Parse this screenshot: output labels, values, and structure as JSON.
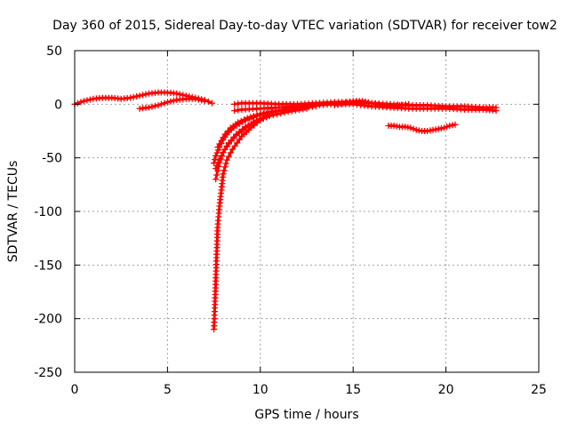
{
  "chart_data": {
    "type": "scatter",
    "title": "Day 360 of 2015, Sidereal Day-to-day VTEC variation (SDTVAR) for receiver tow2",
    "xlabel": "GPS time / hours",
    "ylabel": "SDTVAR / TECUs",
    "xlim": [
      0,
      25
    ],
    "ylim": [
      -250,
      50
    ],
    "xticks": [
      0,
      5,
      10,
      15,
      20,
      25
    ],
    "yticks": [
      50,
      0,
      -50,
      -100,
      -150,
      -200,
      -250
    ],
    "grid": true,
    "marker": "plus",
    "color": "#ff0000",
    "series": [
      {
        "name": "early-oscillation-upper",
        "x": [
          0,
          0.5,
          1,
          1.5,
          2,
          2.5,
          3,
          3.5,
          4,
          4.5,
          5,
          5.5,
          6,
          6.5,
          7,
          7.4
        ],
        "y": [
          0,
          3,
          5,
          6,
          6,
          5,
          6,
          8,
          10,
          11,
          11,
          10,
          8,
          6,
          4,
          1
        ]
      },
      {
        "name": "early-oscillation-lower",
        "x": [
          3.5,
          4,
          4.5,
          5,
          5.5,
          6,
          6.5,
          7
        ],
        "y": [
          -4,
          -3,
          -1,
          2,
          4,
          5,
          5,
          3
        ]
      },
      {
        "name": "steep-drop-main",
        "x": [
          7.5,
          7.55,
          7.6,
          7.65,
          7.7,
          7.8,
          7.9,
          8,
          8.2,
          8.5,
          9,
          9.5,
          10,
          10.5
        ],
        "y": [
          -210,
          -190,
          -165,
          -140,
          -115,
          -95,
          -80,
          -65,
          -52,
          -42,
          -30,
          -22,
          -15,
          -10
        ]
      },
      {
        "name": "recovery-branch-1",
        "x": [
          7.5,
          7.6,
          7.8,
          8,
          8.3,
          8.7,
          9.2,
          9.8,
          10.5,
          11,
          12,
          13
        ],
        "y": [
          -55,
          -48,
          -40,
          -33,
          -26,
          -20,
          -15,
          -11,
          -8,
          -6,
          -4,
          -2
        ]
      },
      {
        "name": "recovery-branch-2",
        "x": [
          7.6,
          7.8,
          8,
          8.3,
          8.7,
          9.2,
          9.8,
          10.5,
          11.5,
          12.5
        ],
        "y": [
          -60,
          -52,
          -45,
          -37,
          -29,
          -22,
          -16,
          -11,
          -7,
          -4
        ]
      },
      {
        "name": "recovery-branch-3",
        "x": [
          7.7,
          7.9,
          8.1,
          8.4,
          8.8,
          9.3,
          10,
          11,
          12
        ],
        "y": [
          -40,
          -34,
          -28,
          -22,
          -17,
          -13,
          -9,
          -6,
          -3
        ]
      },
      {
        "name": "recovery-branch-4",
        "x": [
          7.6,
          7.7,
          7.8,
          8,
          8.3,
          8.7,
          9.2,
          9.8,
          10.5
        ],
        "y": [
          -70,
          -62,
          -54,
          -45,
          -36,
          -28,
          -21,
          -15,
          -10
        ]
      },
      {
        "name": "plateau-upper",
        "x": [
          8.6,
          9,
          10,
          11,
          12,
          13,
          14,
          15,
          16,
          17,
          18,
          19,
          20,
          21,
          22,
          22.7
        ],
        "y": [
          0,
          1,
          1,
          0,
          0,
          1,
          2,
          2,
          1,
          0,
          -1,
          -1,
          -2,
          -2,
          -3,
          -3
        ]
      },
      {
        "name": "plateau-lower",
        "x": [
          8.6,
          9,
          10,
          11,
          12,
          13,
          14,
          15,
          16,
          17,
          18,
          19,
          20,
          21,
          22,
          22.7
        ],
        "y": [
          -6,
          -5,
          -4,
          -3,
          -2,
          -1,
          0,
          0,
          -2,
          -3,
          -4,
          -4,
          -4,
          -5,
          -5,
          -6
        ]
      },
      {
        "name": "plateau-middle",
        "x": [
          14,
          14.5,
          15,
          15.5,
          16,
          16.5,
          17,
          17.5,
          18
        ],
        "y": [
          -1,
          1,
          3,
          3,
          1,
          -1,
          -2,
          -1,
          0
        ]
      },
      {
        "name": "late-cluster",
        "x": [
          16.9,
          17.2,
          17.5,
          17.8,
          18.1,
          18.4,
          18.7,
          19,
          19.3,
          19.6,
          19.9,
          20.2,
          20.5
        ],
        "y": [
          -20,
          -20,
          -21,
          -21,
          -22,
          -24,
          -25,
          -25,
          -24,
          -23,
          -22,
          -20,
          -19
        ]
      }
    ]
  }
}
